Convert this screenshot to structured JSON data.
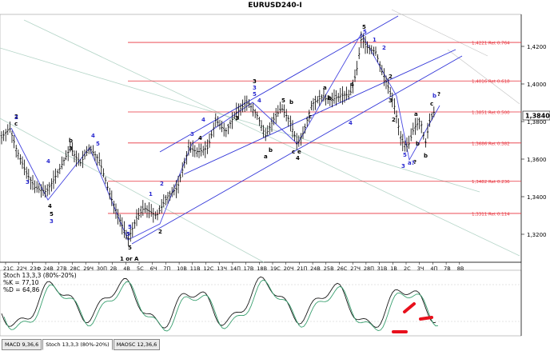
{
  "window": {
    "title": "EURUSD240-I"
  },
  "price_axis": {
    "labels": [
      "1,4200",
      "1,4000",
      "1,3800",
      "1,3600",
      "1,3400",
      "1,3200"
    ],
    "current_price": "1,3840"
  },
  "time_axis": {
    "labels": [
      "21C",
      "22Ч",
      "23Ф",
      "24В",
      "27В",
      "28С",
      "29Ч",
      "30П",
      "2В",
      "4В",
      "5С",
      "6Ч",
      "7П",
      "10В",
      "11В",
      "12С",
      "13Ч",
      "14П",
      "17В",
      "18В",
      "19С",
      "20Ч",
      "21П",
      "24В",
      "25В",
      "26С",
      "27Ч",
      "28П",
      "31В",
      "1В",
      "2С",
      "3Ч",
      "4П",
      "7В",
      "8В"
    ]
  },
  "fib_levels": [
    {
      "price": 1.4221,
      "label": "1,4221 Ret 0.764"
    },
    {
      "price": 1.4016,
      "label": "1,4016 Ret 0.618"
    },
    {
      "price": 1.3851,
      "label": "1,3851 Ret 0.500"
    },
    {
      "price": 1.3686,
      "label": "1,3686 Ret 0.382"
    },
    {
      "price": 1.3482,
      "label": "1,3482 Ret 0.236"
    },
    {
      "price": 1.3311,
      "label": "1,3311 Ret 0.114"
    }
  ],
  "wave_labels": {
    "black": [
      "2",
      "c",
      "b",
      "3",
      "4",
      "5",
      "5",
      "1 or A",
      "2",
      "3",
      "5",
      "b",
      "a",
      "b",
      "4",
      "c",
      "e",
      "5",
      "a",
      "c",
      "b",
      "4",
      "2",
      "3",
      "b",
      "a",
      "c",
      "b",
      "3",
      "2",
      "4"
    ],
    "blue": [
      "2",
      "3",
      "4",
      "4",
      "5",
      "3",
      "5",
      "5",
      "3",
      "4",
      "1",
      "2",
      "3",
      "5",
      "1",
      "2",
      "4",
      "5",
      "b",
      "3",
      "a?",
      "4",
      "5"
    ],
    "question": [
      "?",
      "?"
    ]
  },
  "stochastic": {
    "title": "Stoch 13,3,3 (80%-20%)",
    "k_label": "%K = 77,10",
    "d_label": "%D = 64,86"
  },
  "tabs": [
    {
      "label": "MACD 9,36,6"
    },
    {
      "label": "Stoch 13,3,3 (80%-20%)"
    },
    {
      "label": "MAOSC 12,36,6"
    }
  ],
  "colors": {
    "fib_line": "#e8323c",
    "channel": "#3034d8",
    "wave_blue": "#2a2ad0",
    "gann": "#a8d0c0",
    "marker": "#e8101c"
  }
}
